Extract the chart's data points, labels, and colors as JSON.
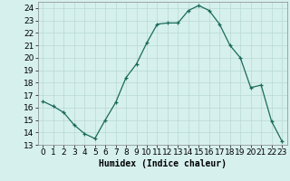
{
  "title": "",
  "xlabel": "Humidex (Indice chaleur)",
  "x": [
    0,
    1,
    2,
    3,
    4,
    5,
    6,
    7,
    8,
    9,
    10,
    11,
    12,
    13,
    14,
    15,
    16,
    17,
    18,
    19,
    20,
    21,
    22,
    23
  ],
  "y": [
    16.5,
    16.1,
    15.6,
    14.6,
    13.9,
    13.5,
    15.0,
    16.4,
    18.4,
    19.5,
    21.2,
    22.7,
    22.8,
    22.8,
    23.8,
    24.2,
    23.8,
    22.7,
    21.0,
    20.0,
    17.6,
    17.8,
    14.9,
    13.3
  ],
  "ylim": [
    13,
    24.5
  ],
  "xlim": [
    -0.5,
    23.5
  ],
  "yticks": [
    13,
    14,
    15,
    16,
    17,
    18,
    19,
    20,
    21,
    22,
    23,
    24
  ],
  "xticks": [
    0,
    1,
    2,
    3,
    4,
    5,
    6,
    7,
    8,
    9,
    10,
    11,
    12,
    13,
    14,
    15,
    16,
    17,
    18,
    19,
    20,
    21,
    22,
    23
  ],
  "line_color": "#1a6b5a",
  "marker": "+",
  "bg_color": "#d6f0ee",
  "grid_color": "#b8d8d4",
  "label_fontsize": 7,
  "tick_fontsize": 6.5
}
